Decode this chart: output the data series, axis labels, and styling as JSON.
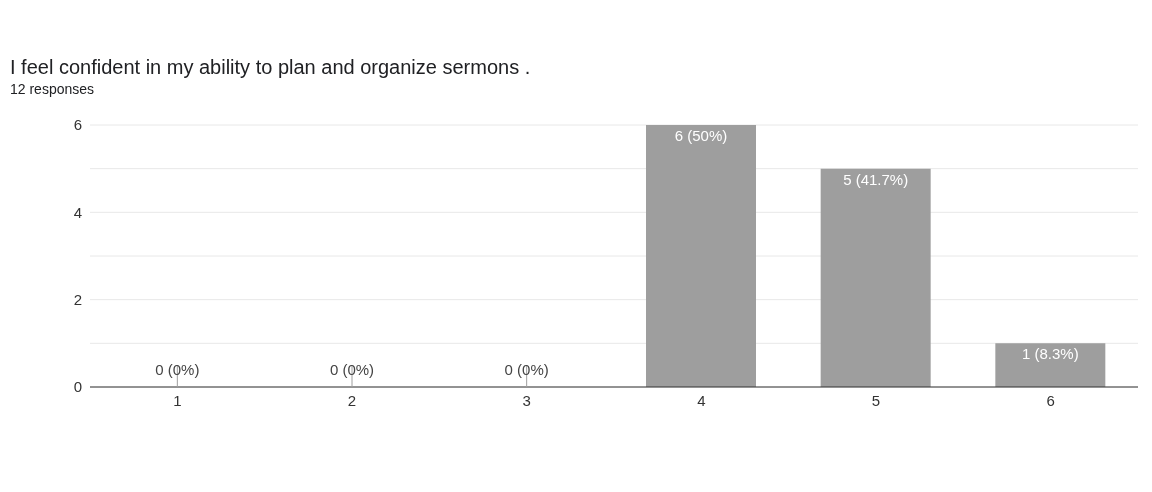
{
  "chart_data": {
    "type": "bar",
    "title": "I feel confident in my ability to plan and organize sermons .",
    "subtitle": "12 responses",
    "categories": [
      "1",
      "2",
      "3",
      "4",
      "5",
      "6"
    ],
    "values": [
      0,
      0,
      0,
      6,
      5,
      1
    ],
    "value_labels": [
      "0 (0%)",
      "0 (0%)",
      "0 (0%)",
      "6 (50%)",
      "5 (41.7%)",
      "1 (8.3%)"
    ],
    "color": "#9e9e9e",
    "ylim": [
      0,
      6
    ],
    "yticks": [
      0,
      {
        "value": 1,
        "label": null
      },
      2,
      {
        "value": 3,
        "label": null
      },
      4,
      {
        "value": 5,
        "label": null
      },
      6
    ],
    "grid": "y",
    "legend": false
  }
}
